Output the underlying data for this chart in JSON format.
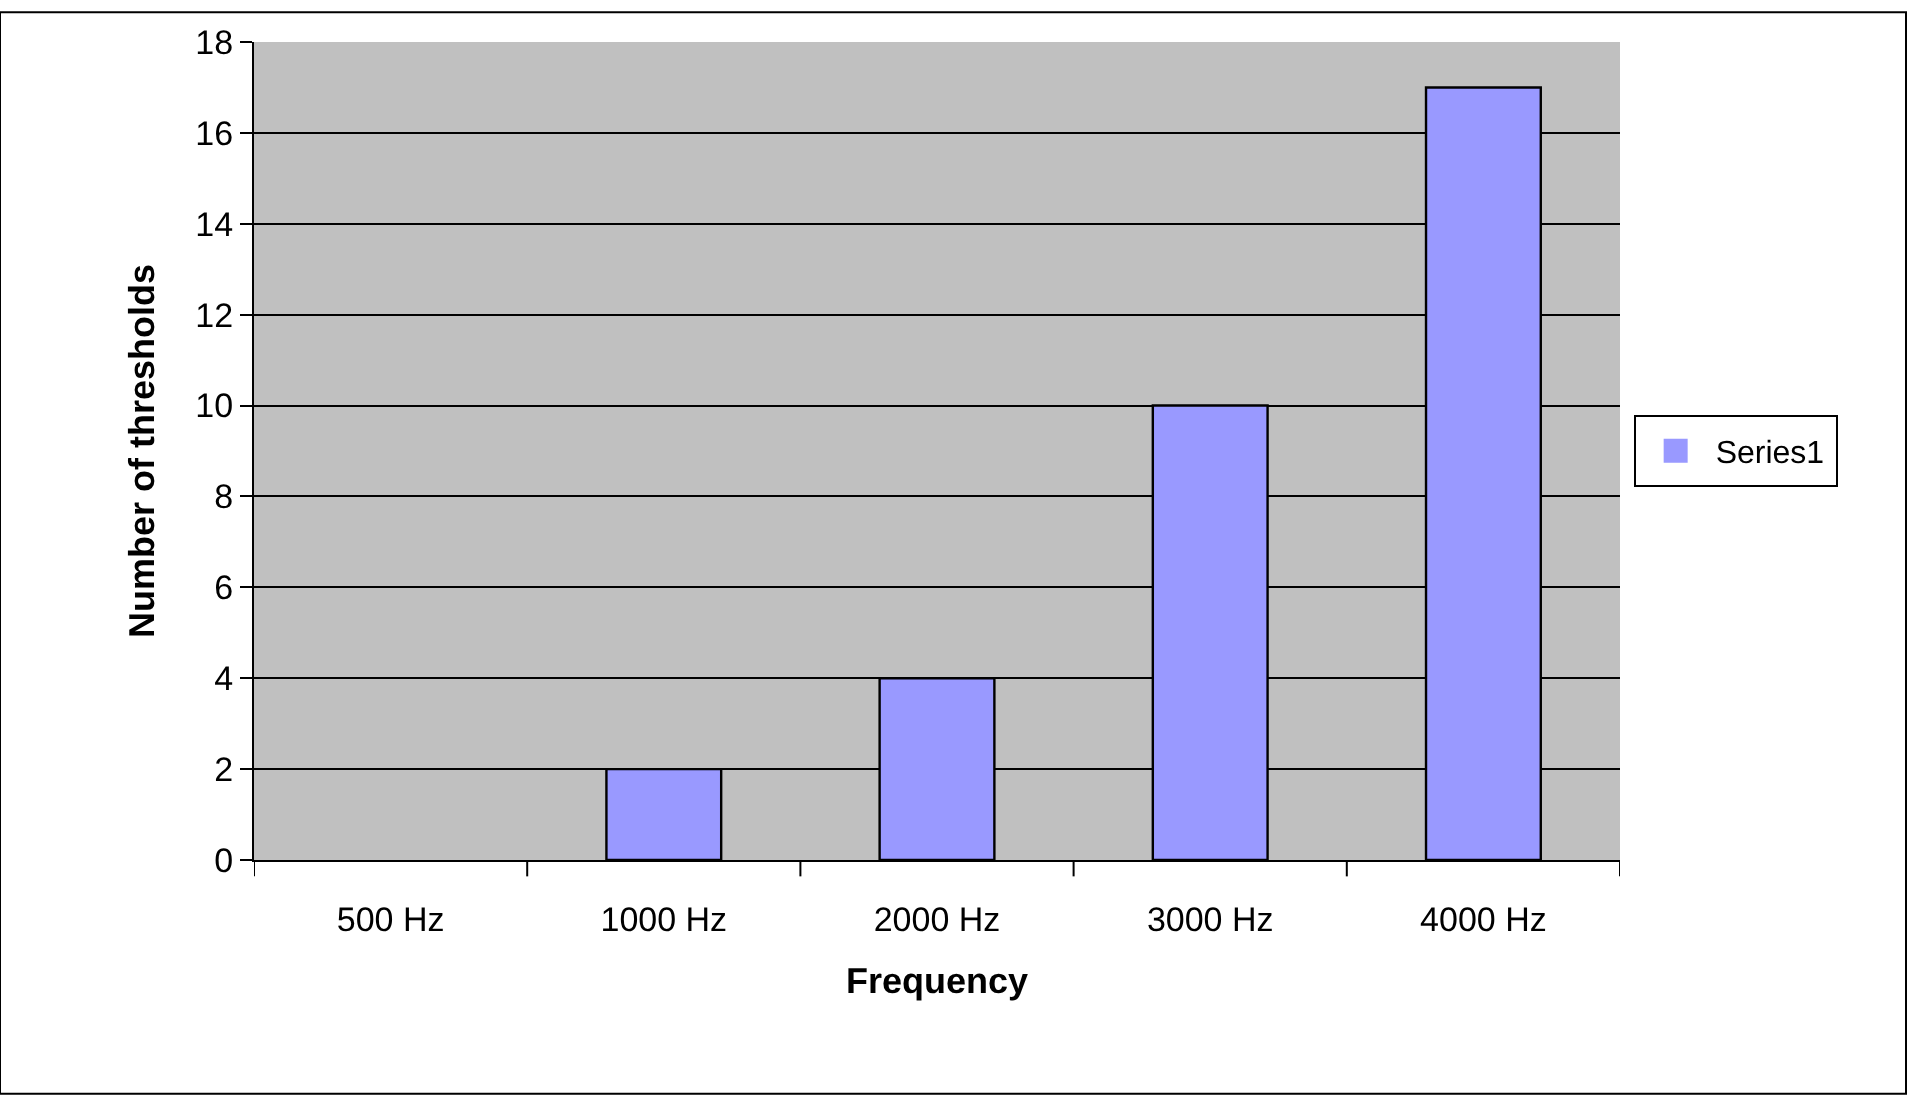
{
  "chart_data": {
    "type": "bar",
    "xlabel": "Frequency",
    "ylabel": "Number of thresholds",
    "categories": [
      "500 Hz",
      "1000 Hz",
      "2000 Hz",
      "3000 Hz",
      "4000 Hz"
    ],
    "series": [
      {
        "name": "Series1",
        "color": "#9999ff",
        "values": [
          0,
          2,
          4,
          10,
          17
        ]
      }
    ],
    "ylim": [
      0,
      18
    ],
    "yticks": [
      0,
      2,
      4,
      6,
      8,
      10,
      12,
      14,
      16,
      18
    ],
    "grid": "y",
    "legend": "right"
  }
}
